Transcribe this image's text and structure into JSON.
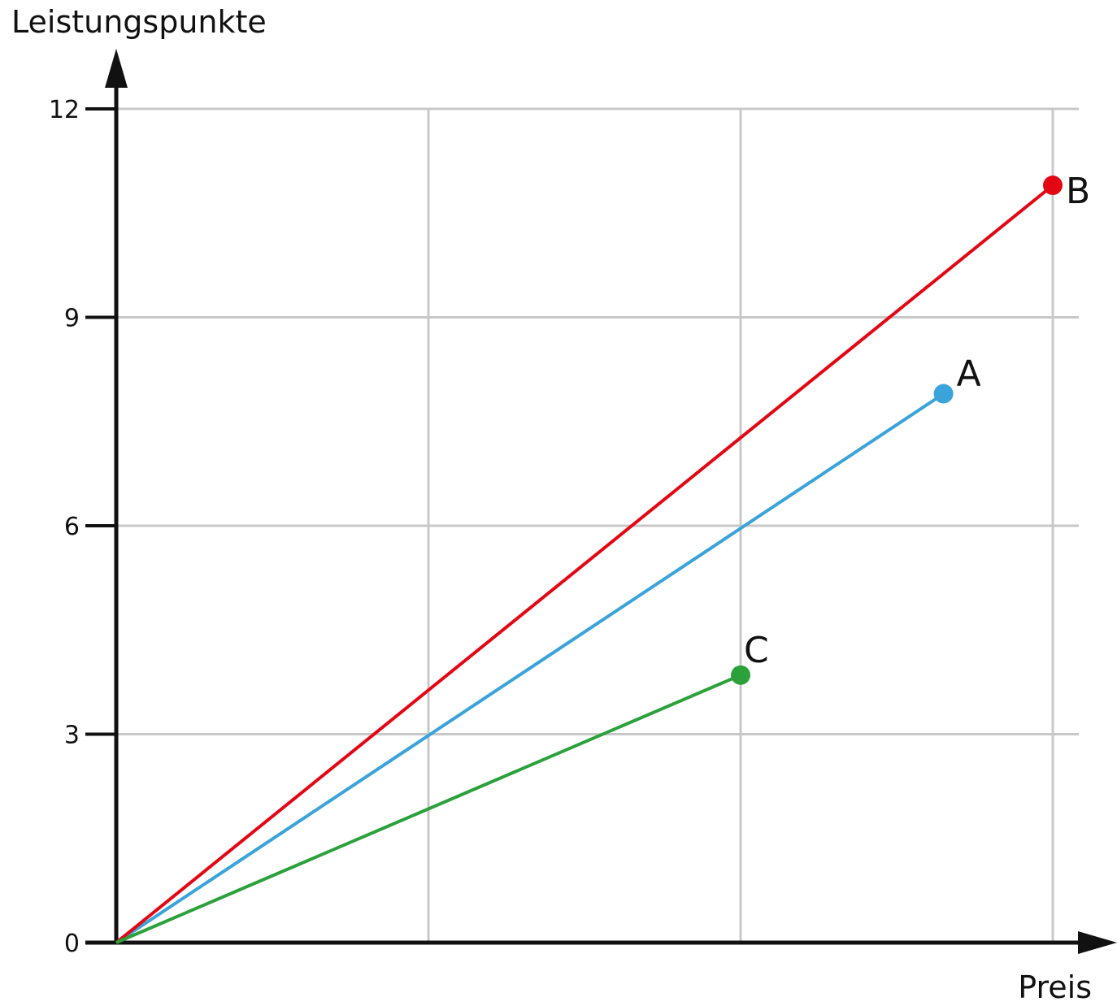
{
  "chart_data": {
    "type": "line",
    "xlabel": "Preis",
    "ylabel": "Leistungspunkte",
    "x_tick_labels_shown": false,
    "xlim": [
      0,
      3
    ],
    "ylim": [
      0,
      12
    ],
    "y_ticks": [
      "0",
      "3",
      "6",
      "9",
      "12"
    ],
    "grid": true,
    "series": [
      {
        "name": "A",
        "color": "#3aa3d9",
        "points": [
          [
            0,
            0
          ],
          [
            2.65,
            7.9
          ]
        ]
      },
      {
        "name": "B",
        "color": "#e30613",
        "points": [
          [
            0,
            0
          ],
          [
            3.0,
            10.9
          ]
        ]
      },
      {
        "name": "C",
        "color": "#2aa13a",
        "points": [
          [
            0,
            0
          ],
          [
            2.0,
            3.85
          ]
        ]
      }
    ]
  }
}
